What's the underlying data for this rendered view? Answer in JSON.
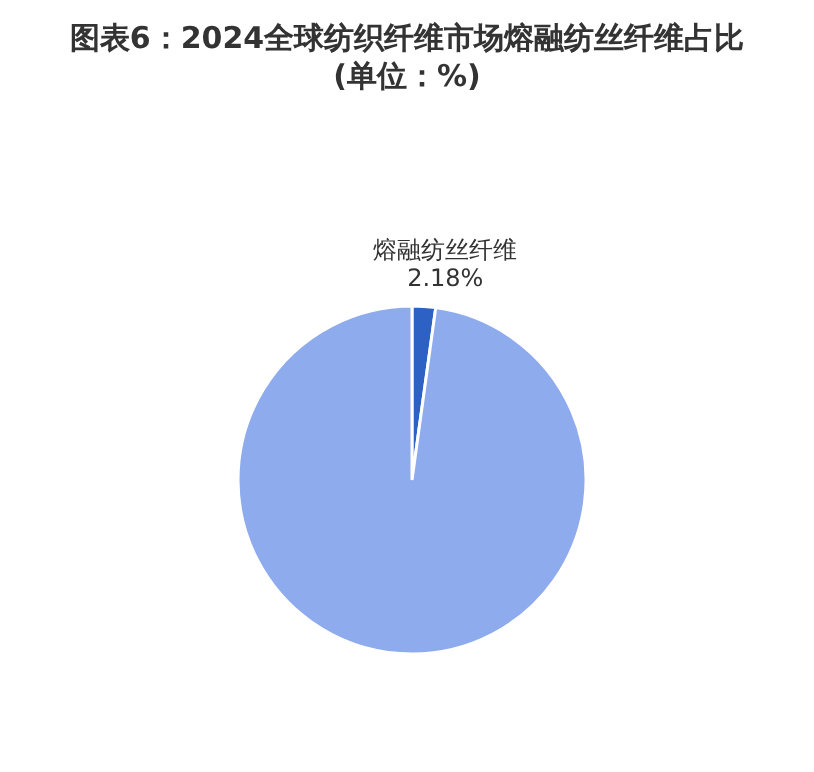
{
  "chart_data": {
    "type": "pie",
    "title": "图表6：2024全球纺织纤维市场熔融纺丝纤维占比",
    "subtitle": "(单位：%)",
    "categories": [
      "熔融纺丝纤维",
      null
    ],
    "values": [
      2.18,
      97.82
    ],
    "colors": [
      "#2d62c4",
      "#8eabed"
    ],
    "value_labels": [
      "2.18%",
      null
    ],
    "legend": false
  }
}
